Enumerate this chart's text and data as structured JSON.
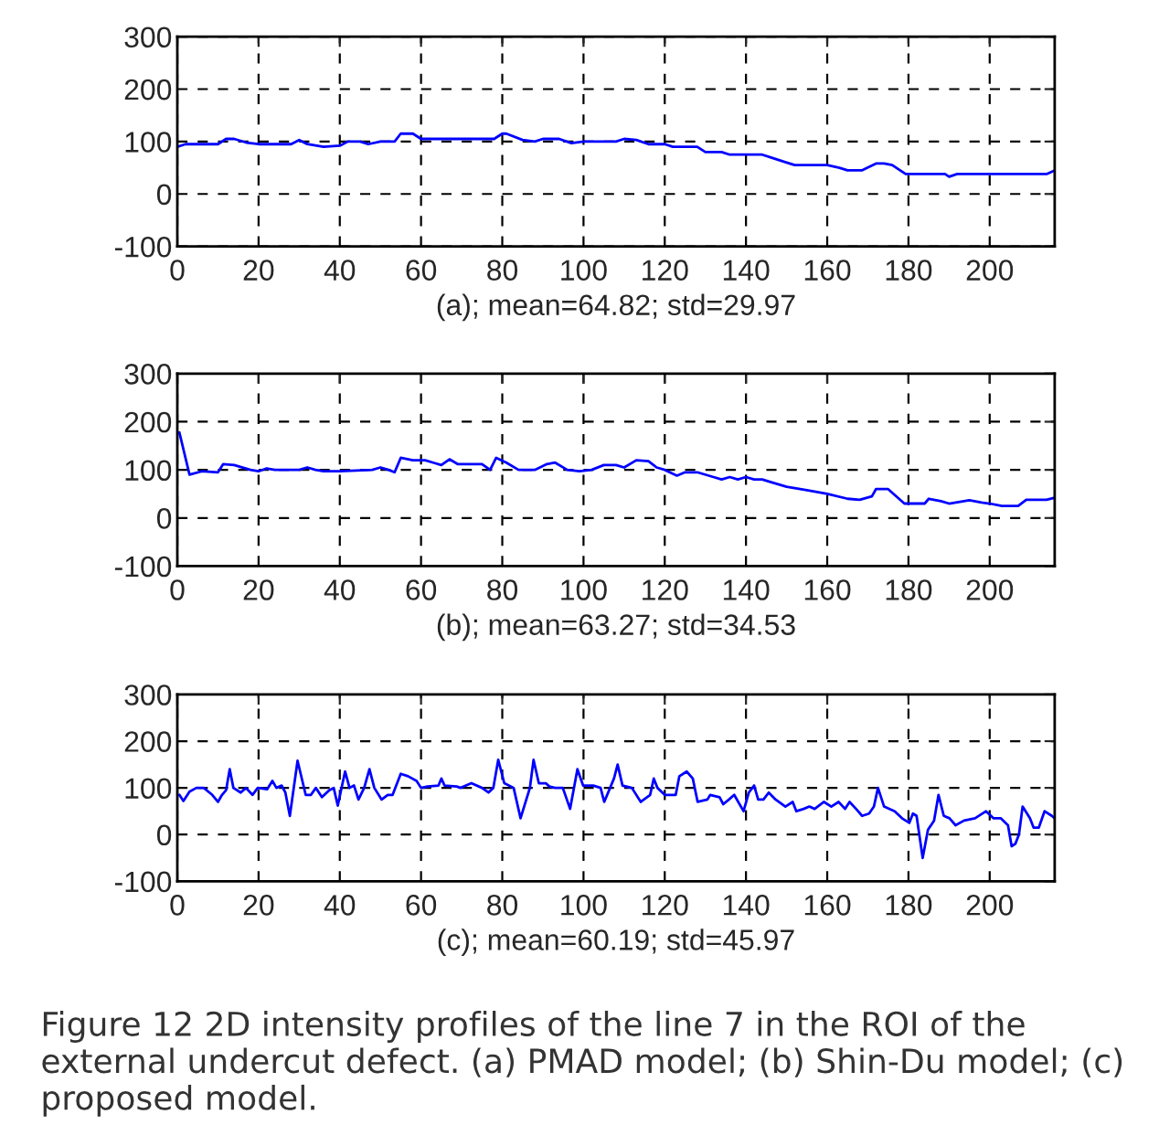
{
  "chart_data": [
    {
      "type": "line",
      "xlabel": "(a); mean=64.82; std=29.97",
      "xlim": [
        0,
        216
      ],
      "ylim": [
        -100,
        300
      ],
      "xticks": [
        0,
        20,
        40,
        60,
        80,
        100,
        120,
        140,
        160,
        180,
        200
      ],
      "yticks": [
        -100,
        0,
        100,
        200,
        300
      ],
      "grid": true,
      "line_style": "solid",
      "marker": "none",
      "series": [
        {
          "color": "#0000ff",
          "x": [
            0,
            2,
            10,
            12,
            14,
            17,
            20,
            28,
            30,
            32,
            36,
            40,
            42,
            45,
            47,
            50,
            53.5,
            55,
            58,
            60,
            63,
            70,
            78,
            80,
            81,
            85,
            88,
            90,
            94,
            97,
            100,
            108,
            110,
            113,
            116,
            120,
            122,
            128,
            130,
            134,
            136,
            144,
            146,
            150,
            152,
            160,
            163,
            165,
            168.5,
            172,
            174,
            176,
            179.3,
            182,
            189,
            190,
            192,
            214,
            216
          ],
          "values": [
            90,
            95,
            95,
            105,
            105,
            98,
            95,
            95,
            103,
            95,
            90,
            92,
            100,
            100,
            95,
            100,
            100,
            115,
            115,
            105,
            105,
            105,
            105,
            115,
            115,
            103,
            100,
            105,
            105,
            97,
            100,
            100,
            105,
            103,
            95,
            95,
            90,
            90,
            80,
            80,
            75,
            75,
            70,
            60,
            55,
            55,
            50,
            45,
            45,
            58,
            58,
            55,
            38,
            38,
            38,
            33,
            38,
            38,
            45
          ]
        }
      ]
    },
    {
      "type": "line",
      "xlabel": "(b); mean=63.27; std=34.53",
      "xlim": [
        0,
        216
      ],
      "ylim": [
        -100,
        300
      ],
      "xticks": [
        0,
        20,
        40,
        60,
        80,
        100,
        120,
        140,
        160,
        180,
        200
      ],
      "yticks": [
        -100,
        0,
        100,
        200,
        300
      ],
      "grid": true,
      "line_style": "solid",
      "marker": "none",
      "series": [
        {
          "color": "#0000ff",
          "x": [
            0.5,
            3,
            6,
            10,
            11.3,
            14,
            18,
            20,
            22,
            24,
            30,
            32,
            34,
            36,
            40,
            48,
            50,
            52,
            53.5,
            55,
            58,
            61,
            63,
            65,
            67,
            69,
            75,
            77,
            78.5,
            81,
            84,
            88,
            91,
            93,
            96,
            99,
            102,
            105,
            108,
            110,
            113,
            116,
            118,
            120,
            123,
            125,
            126,
            128,
            132,
            134,
            136,
            138,
            140,
            142,
            144,
            146,
            150,
            155,
            160,
            165,
            168,
            171,
            172,
            175,
            179,
            184,
            185,
            188,
            190,
            195,
            198,
            200,
            203,
            207,
            209,
            214,
            216
          ],
          "values": [
            178,
            90,
            97,
            95,
            112,
            110,
            100,
            97,
            103,
            100,
            100,
            105,
            100,
            97,
            97,
            100,
            105,
            100,
            95,
            125,
            120,
            120,
            115,
            110,
            122,
            112,
            112,
            100,
            125,
            115,
            100,
            100,
            112,
            115,
            100,
            97,
            100,
            110,
            110,
            105,
            120,
            118,
            105,
            100,
            88,
            95,
            95,
            95,
            85,
            80,
            85,
            80,
            85,
            80,
            80,
            75,
            65,
            58,
            50,
            40,
            38,
            45,
            60,
            60,
            30,
            30,
            40,
            35,
            30,
            37,
            32,
            30,
            25,
            25,
            38,
            38,
            42
          ]
        }
      ]
    },
    {
      "type": "line",
      "xlabel": "(c); mean=60.19; std=45.97",
      "xlim": [
        0,
        216
      ],
      "ylim": [
        -100,
        300
      ],
      "xticks": [
        0,
        20,
        40,
        60,
        80,
        100,
        120,
        140,
        160,
        180,
        200
      ],
      "yticks": [
        -100,
        0,
        100,
        200,
        300
      ],
      "grid": true,
      "line_style": "solid",
      "marker": "none",
      "annotations": [
        "Figure 12 2D intensity profiles of the line 7 in the ROI of the external undercut defect. (a) PMAD model; (b) Shin-Du model; (c) proposed model."
      ],
      "series": [
        {
          "color": "#0000ff",
          "x": [
            0.5,
            1.5,
            3,
            4.7,
            6.5,
            8.6,
            10,
            11,
            12,
            12.9,
            13.8,
            15.6,
            16.9,
            18.5,
            19.8,
            22.1,
            23.4,
            24.4,
            25.7,
            26.6,
            27.7,
            29.6,
            31.6,
            32.9,
            34.1,
            35.6,
            37.4,
            38.5,
            39.5,
            41.3,
            42.4,
            43.5,
            44.6,
            46,
            47.3,
            48.5,
            50.3,
            51.8,
            53,
            55,
            56.8,
            58.9,
            60,
            61.6,
            64.3,
            65,
            65.8,
            68.8,
            69.7,
            72.4,
            75,
            76.6,
            77.8,
            79,
            80.5,
            82.8,
            84.5,
            86.8,
            87.7,
            89,
            90.7,
            91.6,
            93,
            94.9,
            96.7,
            98.5,
            99.9,
            102.4,
            104.2,
            105.1,
            107.5,
            108.4,
            109.6,
            111.9,
            114.1,
            116.4,
            117.3,
            118.2,
            120,
            122.7,
            123.6,
            125.4,
            126.9,
            128.1,
            130.5,
            131.2,
            133.5,
            134.4,
            135.8,
            137.1,
            139.4,
            140.7,
            142,
            143,
            144.3,
            145.6,
            147.3,
            149.7,
            151.5,
            152.4,
            154.2,
            155.6,
            156.9,
            159.2,
            161,
            162.8,
            164.4,
            165.5,
            167.1,
            168.6,
            170.3,
            171.5,
            172.5,
            174,
            176.6,
            178.4,
            180.2,
            181.1,
            182,
            183.5,
            184.8,
            186.3,
            187.4,
            188.7,
            190.1,
            191.6,
            193.7,
            196.4,
            199.1,
            200.9,
            202.7,
            204.5,
            205.4,
            206.3,
            207.2,
            208.1,
            209.9,
            210.8,
            212.1,
            213.5,
            215.3,
            216
          ],
          "values": [
            85,
            72,
            92,
            100,
            100,
            85,
            70,
            85,
            95,
            140,
            100,
            90,
            100,
            85,
            100,
            97,
            115,
            100,
            105,
            90,
            40,
            158,
            85,
            85,
            100,
            80,
            95,
            100,
            62,
            135,
            100,
            105,
            75,
            100,
            140,
            100,
            75,
            85,
            85,
            130,
            125,
            115,
            100,
            103,
            105,
            120,
            105,
            103,
            100,
            110,
            100,
            90,
            100,
            160,
            110,
            100,
            35,
            100,
            160,
            110,
            110,
            103,
            100,
            100,
            55,
            140,
            105,
            105,
            100,
            70,
            120,
            150,
            105,
            100,
            70,
            85,
            120,
            100,
            85,
            85,
            125,
            135,
            120,
            70,
            75,
            85,
            80,
            65,
            75,
            85,
            50,
            90,
            105,
            75,
            75,
            90,
            75,
            60,
            70,
            50,
            55,
            60,
            55,
            70,
            60,
            70,
            55,
            70,
            55,
            40,
            45,
            60,
            100,
            60,
            50,
            35,
            25,
            45,
            40,
            -50,
            10,
            30,
            85,
            40,
            35,
            20,
            30,
            35,
            50,
            35,
            35,
            20,
            -25,
            -20,
            0,
            60,
            35,
            15,
            15,
            50,
            40,
            35
          ]
        }
      ]
    }
  ]
}
